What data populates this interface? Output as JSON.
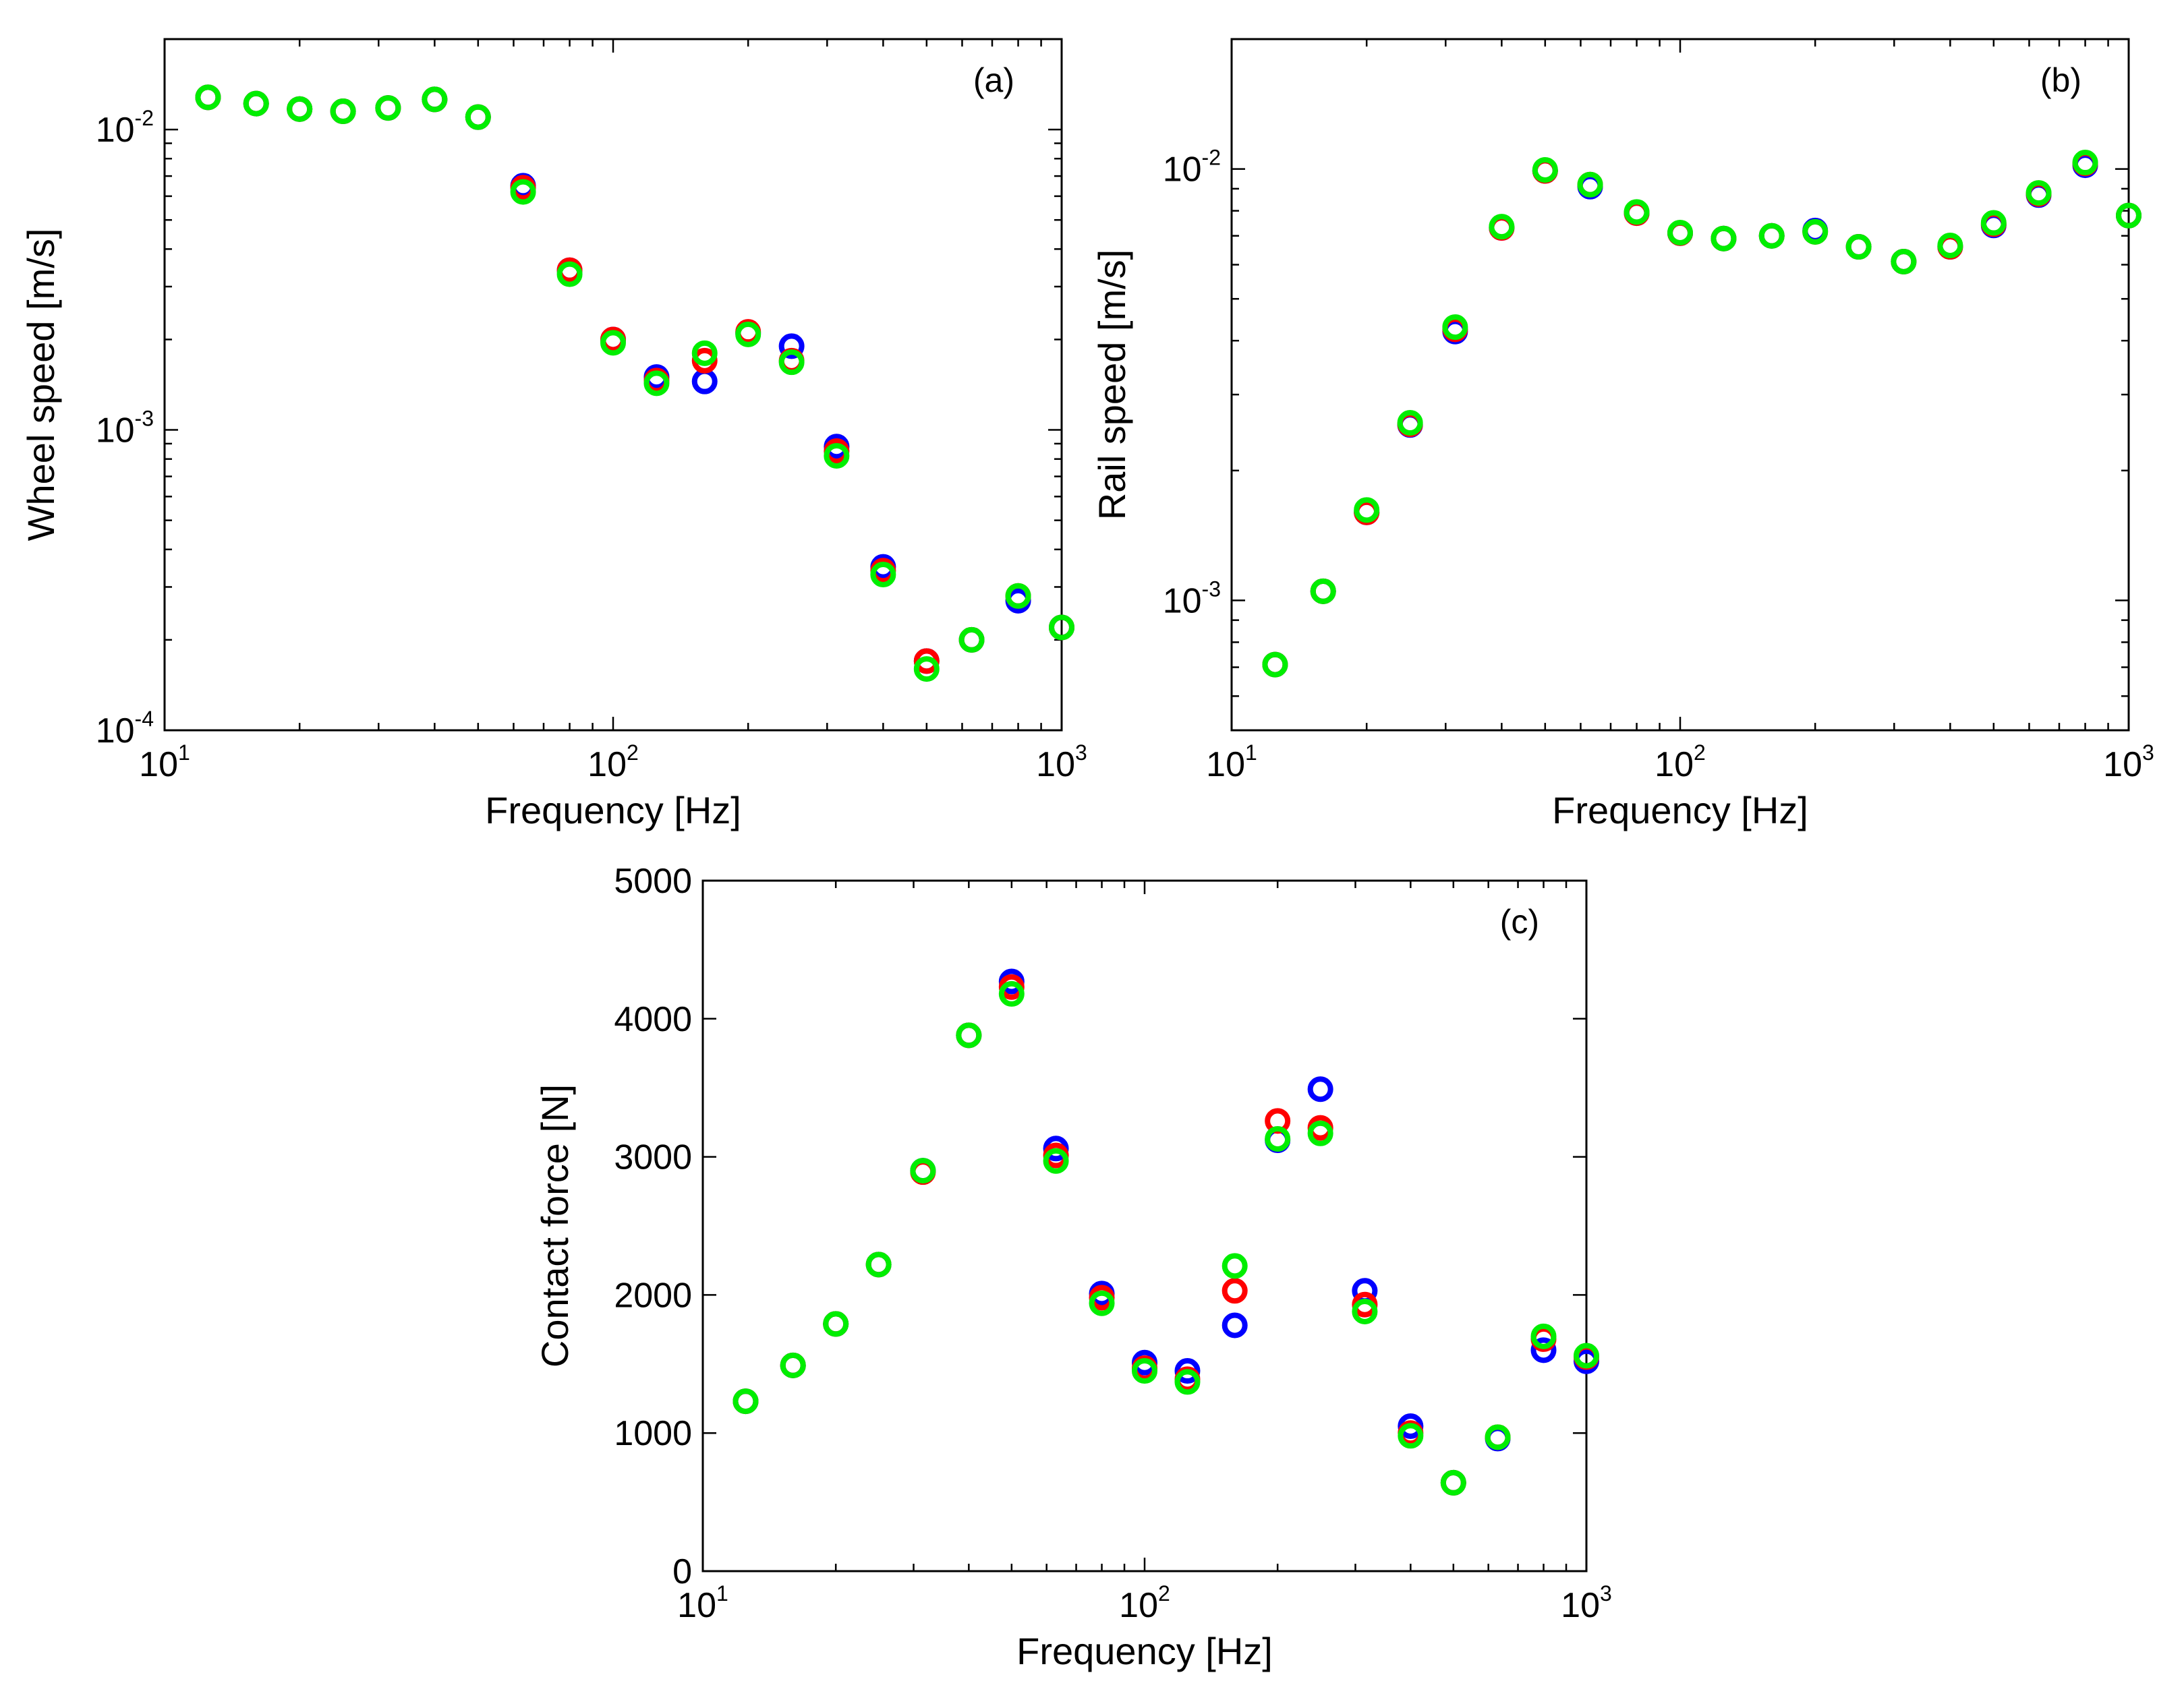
{
  "chart_data": [
    {
      "type": "scatter",
      "panel_label": "(a)",
      "xlabel": "Frequency  [Hz]",
      "ylabel": "Wheel speed [m/s]",
      "xscale": "log",
      "yscale": "log",
      "xlim": [
        10,
        1000
      ],
      "ylim": [
        0.0001,
        0.02
      ],
      "x_ticks": [
        {
          "value": 10,
          "base": "10",
          "exp": "1"
        },
        {
          "value": 100,
          "base": "10",
          "exp": "2"
        },
        {
          "value": 1000,
          "base": "10",
          "exp": "3"
        }
      ],
      "y_ticks": [
        {
          "value": 0.0001,
          "base": "10",
          "exp": "-4"
        },
        {
          "value": 0.001,
          "base": "10",
          "exp": "-3"
        },
        {
          "value": 0.01,
          "base": "10",
          "exp": "-2"
        }
      ],
      "x": [
        12.5,
        16,
        20,
        25,
        31.5,
        40,
        50,
        63,
        80,
        100,
        125,
        160,
        200,
        250,
        315,
        400,
        500,
        630,
        800,
        1000
      ],
      "series": [
        {
          "name": "blue",
          "color": "#0000ff",
          "values": [
            0.0128,
            0.0122,
            0.0117,
            0.0115,
            0.0118,
            0.0126,
            0.011,
            0.0065,
            0.0034,
            0.002,
            0.0015,
            0.00145,
            0.0021,
            0.0019,
            0.00088,
            0.00035,
            0.00017,
            0.0002,
            0.00027,
            0.00022
          ]
        },
        {
          "name": "red",
          "color": "#ff0000",
          "values": [
            0.0128,
            0.0122,
            0.0117,
            0.0115,
            0.0118,
            0.0126,
            0.011,
            0.0064,
            0.0034,
            0.002,
            0.00146,
            0.0017,
            0.00212,
            0.0017,
            0.00085,
            0.00034,
            0.00017,
            0.0002,
            0.00028,
            0.00022
          ]
        },
        {
          "name": "green",
          "color": "#00ee00",
          "values": [
            0.0128,
            0.0122,
            0.0117,
            0.0115,
            0.0118,
            0.0126,
            0.011,
            0.0062,
            0.0033,
            0.00195,
            0.00143,
            0.0018,
            0.00208,
            0.00168,
            0.00082,
            0.00033,
            0.00016,
            0.0002,
            0.00028,
            0.00022
          ]
        }
      ]
    },
    {
      "type": "scatter",
      "panel_label": "(b)",
      "xlabel": "Frequency [Hz]",
      "ylabel": "Rail speed [m/s]",
      "xscale": "log",
      "yscale": "log",
      "xlim": [
        10,
        1000
      ],
      "ylim": [
        0.0005,
        0.02
      ],
      "x_ticks": [
        {
          "value": 10,
          "base": "10",
          "exp": "1"
        },
        {
          "value": 100,
          "base": "10",
          "exp": "2"
        },
        {
          "value": 1000,
          "base": "10",
          "exp": "3"
        }
      ],
      "y_ticks": [
        {
          "value": 0.001,
          "base": "10",
          "exp": "-3"
        },
        {
          "value": 0.01,
          "base": "10",
          "exp": "-2"
        }
      ],
      "x": [
        12.5,
        16,
        20,
        25,
        31.5,
        40,
        50,
        63,
        80,
        100,
        125,
        160,
        200,
        250,
        315,
        400,
        500,
        630,
        800,
        1000
      ],
      "series": [
        {
          "name": "blue",
          "color": "#0000ff",
          "values": [
            0.00071,
            0.00105,
            0.0016,
            0.00255,
            0.0042,
            0.0073,
            0.0099,
            0.0091,
            0.0079,
            0.0071,
            0.0069,
            0.007,
            0.0072,
            0.0066,
            0.0061,
            0.0066,
            0.0074,
            0.0087,
            0.0102,
            0.0078
          ]
        },
        {
          "name": "red",
          "color": "#ff0000",
          "values": [
            0.00071,
            0.00105,
            0.0016,
            0.00256,
            0.00425,
            0.0073,
            0.0099,
            0.0092,
            0.0079,
            0.0071,
            0.0069,
            0.007,
            0.00715,
            0.0066,
            0.0061,
            0.0066,
            0.00745,
            0.00875,
            0.0103,
            0.0078
          ]
        },
        {
          "name": "green",
          "color": "#00ee00",
          "values": [
            0.00071,
            0.00105,
            0.00162,
            0.00258,
            0.0043,
            0.00735,
            0.00995,
            0.0092,
            0.00795,
            0.00712,
            0.0069,
            0.007,
            0.00715,
            0.0066,
            0.0061,
            0.00665,
            0.0075,
            0.0088,
            0.01035,
            0.0078
          ]
        }
      ]
    },
    {
      "type": "scatter",
      "panel_label": "(c)",
      "xlabel": "Frequency [Hz]",
      "ylabel": "Contact force [N]",
      "xscale": "log",
      "yscale": "linear",
      "xlim": [
        10,
        1000
      ],
      "ylim": [
        0,
        5000
      ],
      "x_ticks": [
        {
          "value": 10,
          "base": "10",
          "exp": "1"
        },
        {
          "value": 100,
          "base": "10",
          "exp": "2"
        },
        {
          "value": 1000,
          "base": "10",
          "exp": "3"
        }
      ],
      "y_ticks": [
        {
          "value": 0,
          "label": "0"
        },
        {
          "value": 1000,
          "label": "1000"
        },
        {
          "value": 2000,
          "label": "2000"
        },
        {
          "value": 3000,
          "label": "3000"
        },
        {
          "value": 4000,
          "label": "4000"
        },
        {
          "value": 5000,
          "label": "5000"
        }
      ],
      "x": [
        12.5,
        16,
        20,
        25,
        31.5,
        40,
        50,
        63,
        80,
        100,
        125,
        160,
        200,
        250,
        315,
        400,
        500,
        630,
        800,
        1000
      ],
      "series": [
        {
          "name": "blue",
          "color": "#0000ff",
          "values": [
            1230,
            1490,
            1790,
            2220,
            2900,
            3880,
            4270,
            3060,
            2010,
            1510,
            1450,
            1780,
            3120,
            3490,
            2030,
            1050,
            640,
            960,
            1600,
            1520
          ]
        },
        {
          "name": "red",
          "color": "#ff0000",
          "values": [
            1230,
            1490,
            1790,
            2220,
            2890,
            3880,
            4230,
            3010,
            1980,
            1470,
            1390,
            2030,
            3260,
            3210,
            1930,
            1000,
            640,
            970,
            1680,
            1550
          ]
        },
        {
          "name": "green",
          "color": "#00ee00",
          "values": [
            1230,
            1490,
            1790,
            2220,
            2900,
            3880,
            4180,
            2970,
            1940,
            1450,
            1370,
            2210,
            3130,
            3170,
            1880,
            980,
            640,
            970,
            1700,
            1560
          ]
        }
      ]
    }
  ]
}
